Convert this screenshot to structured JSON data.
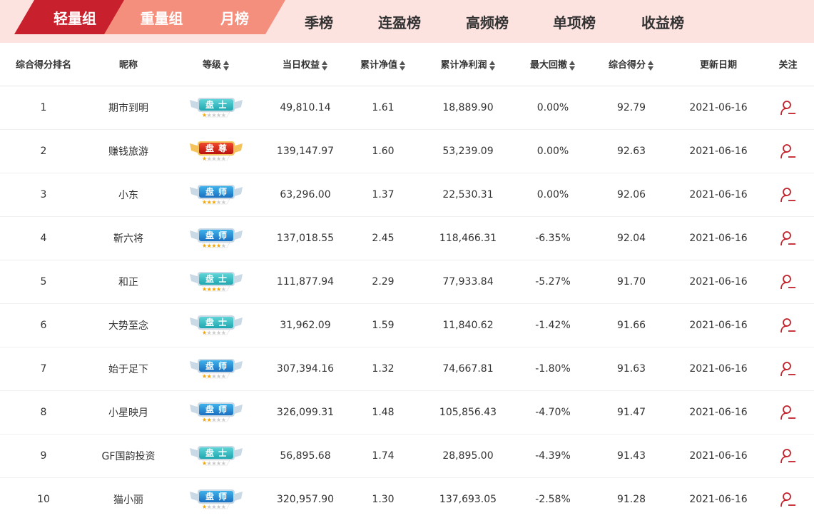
{
  "tabs": {
    "primary": [
      "轻量组",
      "重量组",
      "月榜"
    ],
    "secondary": [
      "季榜",
      "连盈榜",
      "高频榜",
      "单项榜",
      "收益榜"
    ],
    "active": "轻量组"
  },
  "columns": [
    "综合得分排名",
    "昵称",
    "等级",
    "当日权益",
    "累计净值",
    "累计净利润",
    "最大回撤",
    "综合得分",
    "更新日期",
    "关注"
  ],
  "sortable_columns": [
    "等级",
    "当日权益",
    "累计净值",
    "累计净利润",
    "最大回撤",
    "综合得分"
  ],
  "colors": {
    "active_tab": "#c8202c",
    "inactive_tab": "#f48f7e",
    "tabbar_bg": "#fde3e0",
    "level_shi": "#3ec3c8",
    "level_shi2": "#2a8fd4",
    "level_zun": "#d9261f",
    "follow_icon": "#c3212a"
  },
  "rows": [
    {
      "rank": "1",
      "name": "期市到明",
      "level": "盘士",
      "level_type": "teal",
      "stars": 1,
      "equity": "49,810.14",
      "nav": "1.61",
      "profit": "18,889.90",
      "drawdown": "0.00%",
      "score": "92.79",
      "date": "2021-06-16"
    },
    {
      "rank": "2",
      "name": "赚钱旅游",
      "level": "盘尊",
      "level_type": "red",
      "stars": 1,
      "equity": "139,147.97",
      "nav": "1.60",
      "profit": "53,239.09",
      "drawdown": "0.00%",
      "score": "92.63",
      "date": "2021-06-16"
    },
    {
      "rank": "3",
      "name": "小东",
      "level": "盘师",
      "level_type": "blue",
      "stars": 3,
      "equity": "63,296.00",
      "nav": "1.37",
      "profit": "22,530.31",
      "drawdown": "0.00%",
      "score": "92.06",
      "date": "2021-06-16"
    },
    {
      "rank": "4",
      "name": "靳六将",
      "level": "盘师",
      "level_type": "blue",
      "stars": 4,
      "equity": "137,018.55",
      "nav": "2.45",
      "profit": "118,466.31",
      "drawdown": "-6.35%",
      "score": "92.04",
      "date": "2021-06-16"
    },
    {
      "rank": "5",
      "name": "和正",
      "level": "盘士",
      "level_type": "teal",
      "stars": 4,
      "equity": "111,877.94",
      "nav": "2.29",
      "profit": "77,933.84",
      "drawdown": "-5.27%",
      "score": "91.70",
      "date": "2021-06-16"
    },
    {
      "rank": "6",
      "name": "大势至念",
      "level": "盘士",
      "level_type": "teal",
      "stars": 1,
      "equity": "31,962.09",
      "nav": "1.59",
      "profit": "11,840.62",
      "drawdown": "-1.42%",
      "score": "91.66",
      "date": "2021-06-16"
    },
    {
      "rank": "7",
      "name": "始于足下",
      "level": "盘师",
      "level_type": "blue",
      "stars": 2,
      "equity": "307,394.16",
      "nav": "1.32",
      "profit": "74,667.81",
      "drawdown": "-1.80%",
      "score": "91.63",
      "date": "2021-06-16"
    },
    {
      "rank": "8",
      "name": "小星映月",
      "level": "盘师",
      "level_type": "blue",
      "stars": 2,
      "equity": "326,099.31",
      "nav": "1.48",
      "profit": "105,856.43",
      "drawdown": "-4.70%",
      "score": "91.47",
      "date": "2021-06-16"
    },
    {
      "rank": "9",
      "name": "GF国韵投资",
      "level": "盘士",
      "level_type": "teal",
      "stars": 1,
      "equity": "56,895.68",
      "nav": "1.74",
      "profit": "28,895.00",
      "drawdown": "-4.39%",
      "score": "91.43",
      "date": "2021-06-16"
    },
    {
      "rank": "10",
      "name": "猫小丽",
      "level": "盘师",
      "level_type": "blue",
      "stars": 1,
      "equity": "320,957.90",
      "nav": "1.30",
      "profit": "137,693.05",
      "drawdown": "-2.58%",
      "score": "91.28",
      "date": "2021-06-16"
    }
  ]
}
